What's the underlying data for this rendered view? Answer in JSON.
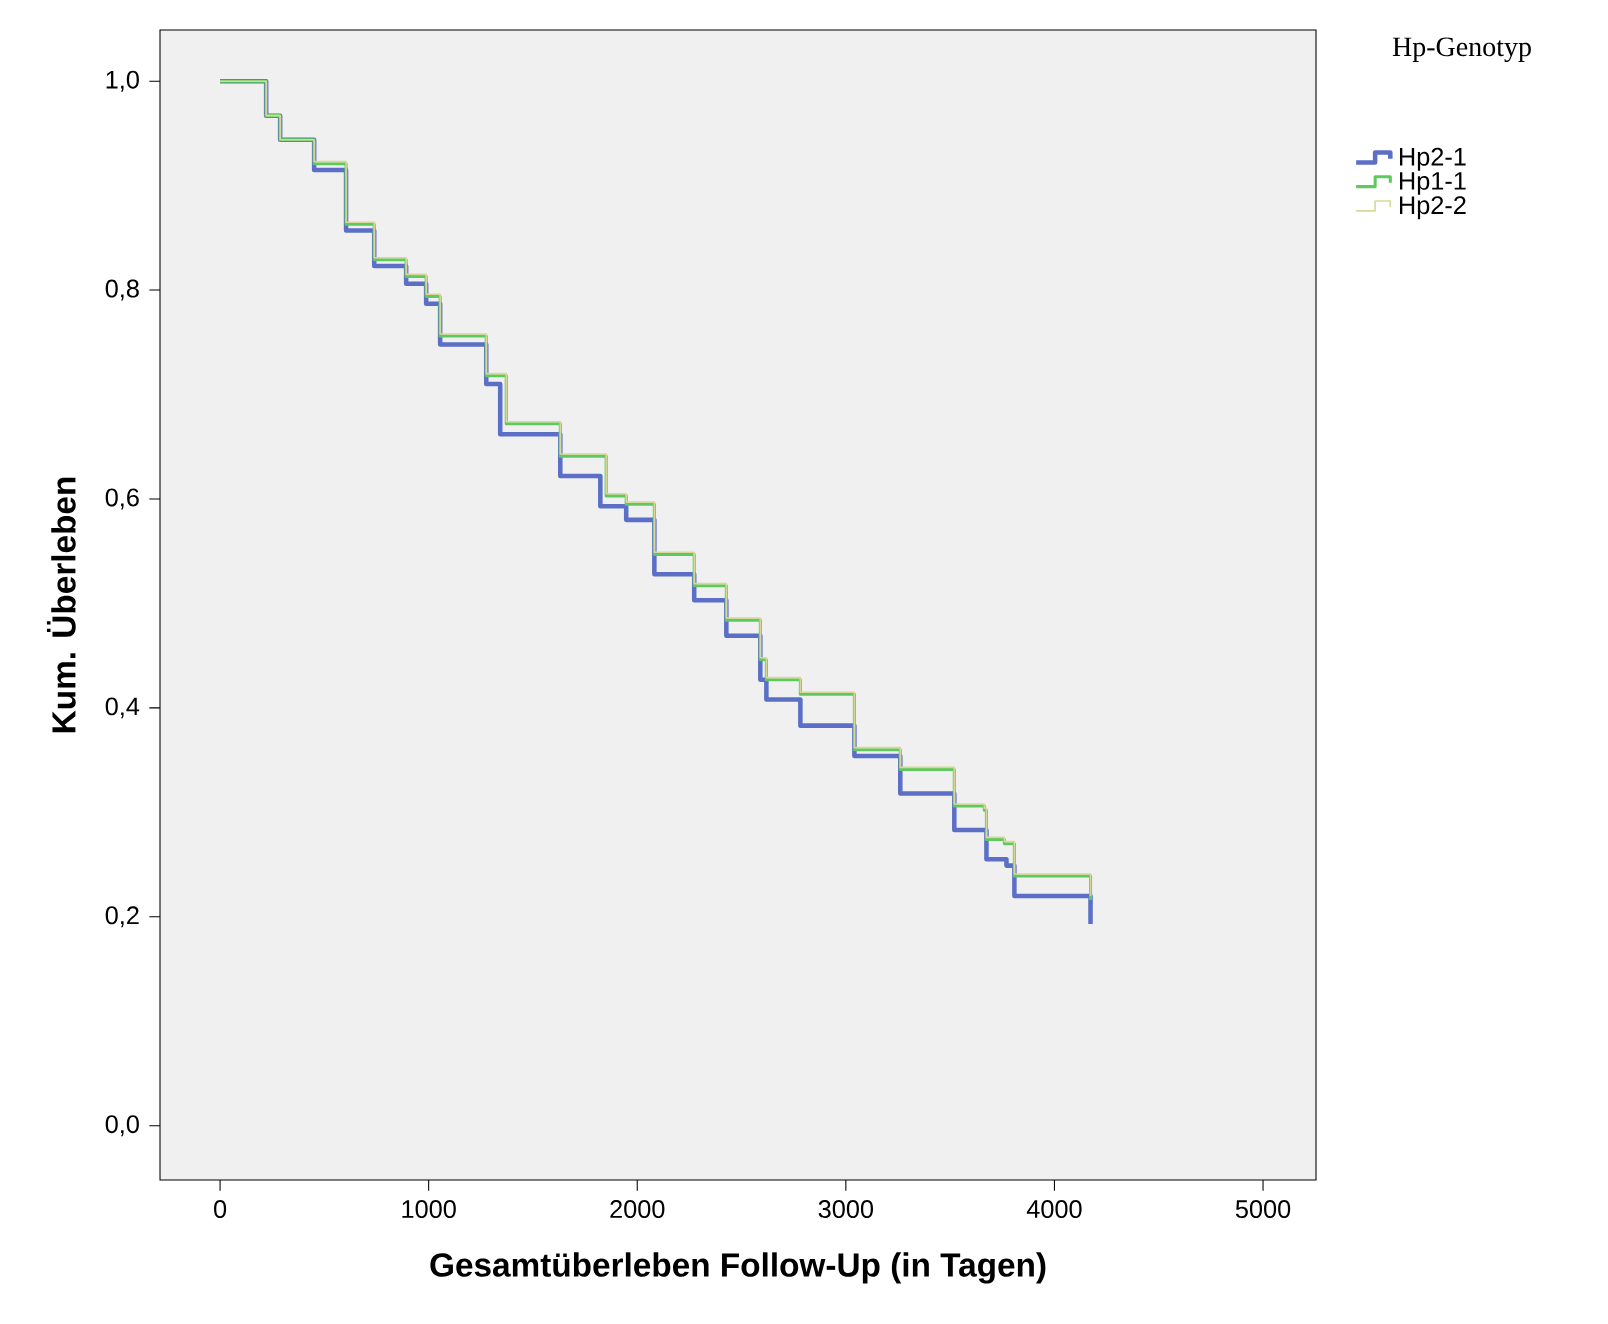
{
  "chart_data": {
    "type": "step",
    "xlabel": "Gesamtüberleben Follow-Up (in Tagen)",
    "ylabel": "Kum. Überleben",
    "legend_title": "Hp-Genotyp",
    "legend": "top right",
    "xlim": [
      -288,
      5254
    ],
    "ylim": [
      -0.052,
      1.049
    ],
    "xticks": [
      0,
      1000,
      2000,
      3000,
      4000,
      5000
    ],
    "yticks": [
      {
        "value": 0.0,
        "label": "0,0"
      },
      {
        "value": 0.2,
        "label": "0,2"
      },
      {
        "value": 0.4,
        "label": "0,4"
      },
      {
        "value": 0.6,
        "label": "0,6"
      },
      {
        "value": 0.8,
        "label": "0,8"
      },
      {
        "value": 1.0,
        "label": "1,0"
      }
    ],
    "series": [
      {
        "name": "Hp2-1",
        "color": "#5b6fc6",
        "x": [
          0,
          221,
          288,
          451,
          604,
          739,
          892,
          988,
          1055,
          1276,
          1343,
          1631,
          1823,
          1947,
          2082,
          2273,
          2427,
          2590,
          2619,
          2782,
          2849,
          3041,
          3261,
          3520,
          3664,
          3674,
          3770,
          3808,
          4173,
          4173
        ],
        "values": [
          1.0,
          0.967,
          0.944,
          0.915,
          0.857,
          0.823,
          0.806,
          0.787,
          0.748,
          0.71,
          0.662,
          0.622,
          0.593,
          0.58,
          0.528,
          0.503,
          0.469,
          0.427,
          0.408,
          0.383,
          0.383,
          0.354,
          0.318,
          0.283,
          0.283,
          0.255,
          0.249,
          0.22,
          0.22,
          0.193
        ]
      },
      {
        "name": "Hp1-1",
        "color": "#5ec95e",
        "x": [
          0,
          221,
          288,
          451,
          604,
          739,
          892,
          988,
          1055,
          1276,
          1372,
          1631,
          1851,
          1947,
          2082,
          2273,
          2427,
          2590,
          2619,
          2782,
          3041,
          3261,
          3520,
          3664,
          3674,
          3760,
          3808,
          4173,
          4173
        ],
        "values": [
          1.0,
          0.967,
          0.944,
          0.921,
          0.863,
          0.829,
          0.813,
          0.794,
          0.756,
          0.718,
          0.672,
          0.641,
          0.603,
          0.595,
          0.547,
          0.517,
          0.484,
          0.446,
          0.427,
          0.413,
          0.36,
          0.341,
          0.306,
          0.302,
          0.274,
          0.27,
          0.239,
          0.239,
          0.216
        ]
      },
      {
        "name": "Hp2-2",
        "color": "#d7d79a",
        "x": [
          0,
          221,
          288,
          451,
          604,
          739,
          892,
          988,
          1055,
          1276,
          1372,
          1631,
          1851,
          1947,
          2082,
          2273,
          2427,
          2590,
          2619,
          2782,
          3041,
          3261,
          3520,
          3664,
          3674,
          3760,
          3808,
          4173,
          4173
        ],
        "values": [
          1.0,
          0.967,
          0.944,
          0.923,
          0.865,
          0.831,
          0.815,
          0.796,
          0.758,
          0.72,
          0.674,
          0.643,
          0.605,
          0.597,
          0.549,
          0.519,
          0.486,
          0.448,
          0.429,
          0.415,
          0.362,
          0.343,
          0.308,
          0.304,
          0.276,
          0.272,
          0.241,
          0.241,
          0.22
        ]
      }
    ]
  }
}
